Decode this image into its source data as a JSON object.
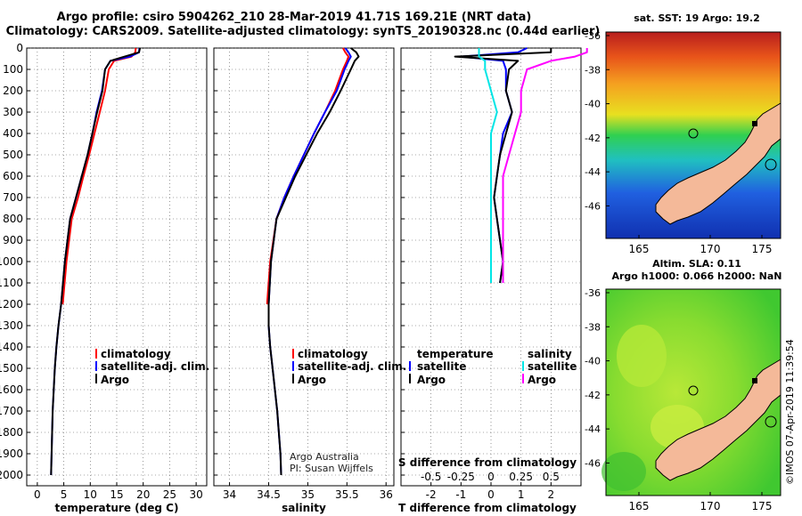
{
  "titles": {
    "line1": "Argo profile: csiro 5904262_210 28-Mar-2019 41.71S 169.21E (NRT data)",
    "line2": "Climatology: CARS2009. Satellite-adjusted climatology: synTS_20190328.nc (0.44d earlier)"
  },
  "maps": {
    "sst_title": "sat. SST: 19 Argo: 19.2",
    "sla_title1": "Altim. SLA: 0.11",
    "sla_title2": "Argo h1000: 0.066 h2000: NaN",
    "lat_ticks": [
      "-36",
      "-38",
      "-40",
      "-42",
      "-44",
      "-46"
    ],
    "lon_ticks": [
      "165",
      "170",
      "175"
    ],
    "credit": "©IMOS 07-Apr-2019 11:39:54"
  },
  "colors": {
    "climatology": "#ff0000",
    "satellite": "#0000ff",
    "argo": "#000000",
    "sal_satellite": "#00e5e5",
    "sal_argo": "#ff00ff",
    "land": "#f4b999"
  },
  "chart_data": [
    {
      "type": "line",
      "id": "temperature",
      "xlabel": "temperature (deg C)",
      "ylabel": "",
      "xlim": [
        -2,
        32
      ],
      "ylim": [
        2050,
        0
      ],
      "xticks": [
        "0",
        "5",
        "10",
        "15",
        "20",
        "25",
        "30"
      ],
      "yticks": [
        "0",
        "100",
        "200",
        "300",
        "400",
        "500",
        "600",
        "700",
        "800",
        "900",
        "1000",
        "1100",
        "1200",
        "1300",
        "1400",
        "1500",
        "1600",
        "1700",
        "1800",
        "1900",
        "2000"
      ],
      "legend": [
        "climatology",
        "satellite-adj. clim.",
        "Argo"
      ],
      "series": [
        {
          "name": "climatology",
          "x": [
            18.6,
            18.5,
            17.8,
            14.5,
            13.5,
            12.8,
            11.8,
            10.8,
            9.8,
            8.7,
            7.7,
            6.5,
            5.5,
            4.8
          ],
          "y": [
            0,
            20,
            40,
            60,
            100,
            200,
            300,
            400,
            500,
            600,
            700,
            800,
            1000,
            1200
          ]
        },
        {
          "name": "satellite-adj. clim.",
          "x": [
            19.3,
            19.2,
            17.5,
            13.8,
            12.8,
            12.2,
            11.2,
            10.4,
            9.5,
            8.4,
            7.3,
            6.2,
            5.2,
            4.5,
            4.0,
            3.6,
            3.3,
            3.1,
            2.9,
            2.8,
            2.7,
            2.6
          ],
          "y": [
            0,
            20,
            40,
            60,
            100,
            200,
            300,
            400,
            500,
            600,
            700,
            800,
            1000,
            1200,
            1300,
            1400,
            1500,
            1600,
            1700,
            1800,
            1900,
            2000
          ]
        },
        {
          "name": "Argo",
          "x": [
            19.4,
            19.2,
            16.5,
            13.8,
            12.8,
            12.3,
            11.3,
            10.4,
            9.5,
            8.4,
            7.3,
            6.2,
            5.2,
            4.5,
            4.0,
            3.6,
            3.3,
            3.1,
            2.9,
            2.8,
            2.7,
            2.6
          ],
          "y": [
            0,
            20,
            40,
            60,
            100,
            200,
            300,
            400,
            500,
            600,
            700,
            800,
            1000,
            1200,
            1300,
            1400,
            1500,
            1600,
            1700,
            1800,
            1900,
            2000
          ]
        }
      ]
    },
    {
      "type": "line",
      "id": "salinity",
      "xlabel": "salinity",
      "xlim": [
        33.8,
        36.1
      ],
      "ylim": [
        2050,
        0
      ],
      "xticks": [
        "34",
        "34.5",
        "35",
        "35.5",
        "36"
      ],
      "legend": [
        "climatology",
        "satellite-adj. clim.",
        "Argo"
      ],
      "annotations": [
        "Argo Australia",
        "PI: Susan Wijffels"
      ],
      "series": [
        {
          "name": "climatology",
          "x": [
            35.45,
            35.48,
            35.52,
            35.5,
            35.45,
            35.35,
            35.22,
            35.08,
            34.95,
            34.82,
            34.7,
            34.6,
            34.52,
            34.48
          ],
          "y": [
            0,
            20,
            40,
            60,
            100,
            200,
            300,
            400,
            500,
            600,
            700,
            800,
            1000,
            1200
          ]
        },
        {
          "name": "satellite-adj. clim.",
          "x": [
            35.48,
            35.52,
            35.55,
            35.52,
            35.47,
            35.37,
            35.22,
            35.08,
            34.95,
            34.82,
            34.7,
            34.6,
            34.53,
            34.5,
            34.5,
            34.52,
            34.55,
            34.58,
            34.61,
            34.63,
            34.65,
            34.66
          ],
          "y": [
            0,
            20,
            40,
            60,
            100,
            200,
            300,
            400,
            500,
            600,
            700,
            800,
            1000,
            1200,
            1300,
            1400,
            1500,
            1600,
            1700,
            1800,
            1900,
            2000
          ]
        },
        {
          "name": "Argo",
          "x": [
            35.55,
            35.62,
            35.65,
            35.6,
            35.55,
            35.42,
            35.28,
            35.12,
            34.98,
            34.84,
            34.72,
            34.6,
            34.53,
            34.5,
            34.5,
            34.52,
            34.55,
            34.58,
            34.61,
            34.63,
            34.65,
            34.66
          ],
          "y": [
            0,
            20,
            40,
            60,
            100,
            200,
            300,
            400,
            500,
            600,
            700,
            800,
            1000,
            1200,
            1300,
            1400,
            1500,
            1600,
            1700,
            1800,
            1900,
            2000
          ]
        }
      ]
    },
    {
      "type": "line",
      "id": "difference",
      "xlabel": "T difference from climatology",
      "xlabel2": "S difference from climatology",
      "xlim": [
        -3,
        3
      ],
      "ylim": [
        2050,
        0
      ],
      "xticks": [
        "-2",
        "-1",
        "0",
        "1",
        "2"
      ],
      "xticks2": [
        "-0.5",
        "-0.25",
        "0",
        "0.25",
        "0.5"
      ],
      "legend": {
        "temperature_header": "temperature",
        "salinity_header": "salinity",
        "entries": [
          "satellite",
          "Argo",
          "satellite",
          "Argo"
        ]
      },
      "series": [
        {
          "name": "temperature satellite",
          "x": [
            1.2,
            0.9,
            -1.0,
            0.4,
            0.5,
            0.5,
            0.7,
            0.4,
            0.3,
            0.2,
            0.1,
            0.2,
            0.4,
            0.3
          ],
          "y": [
            0,
            20,
            40,
            60,
            100,
            200,
            300,
            400,
            500,
            600,
            700,
            800,
            1000,
            1100
          ]
        },
        {
          "name": "temperature Argo",
          "x": [
            2.0,
            2.0,
            -1.2,
            0.9,
            0.6,
            0.5,
            0.7,
            0.5,
            0.3,
            0.2,
            0.1,
            0.2,
            0.4,
            0.3
          ],
          "y": [
            0,
            20,
            40,
            60,
            100,
            200,
            300,
            400,
            500,
            600,
            700,
            800,
            1000,
            1100
          ]
        },
        {
          "name": "salinity satellite",
          "x": [
            -0.1,
            -0.1,
            -0.1,
            -0.05,
            -0.05,
            0.0,
            0.05,
            0.0,
            0.0,
            0.0,
            0.0,
            0.0,
            0.0,
            0.0
          ],
          "y": [
            0,
            20,
            40,
            60,
            100,
            200,
            300,
            400,
            500,
            600,
            700,
            800,
            1000,
            1100
          ]
        },
        {
          "name": "salinity Argo",
          "x": [
            0.8,
            0.8,
            0.7,
            0.5,
            0.3,
            0.25,
            0.25,
            0.2,
            0.15,
            0.1,
            0.1,
            0.1,
            0.1,
            0.1
          ],
          "y": [
            0,
            20,
            40,
            60,
            100,
            200,
            300,
            400,
            500,
            600,
            700,
            800,
            1000,
            1100
          ]
        }
      ]
    }
  ]
}
